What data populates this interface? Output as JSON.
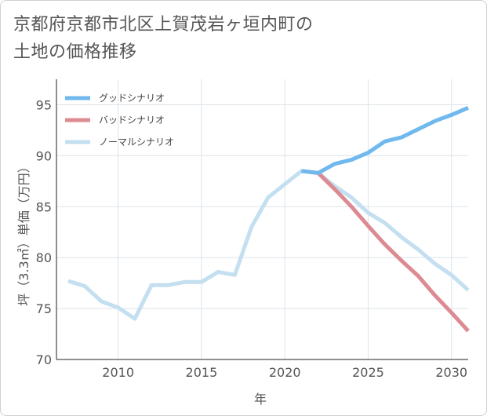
{
  "title": {
    "line1": "京都府京都市北区上賀茂岩ヶ垣内町の",
    "line2": "土地の価格推移"
  },
  "chart_data": {
    "type": "line",
    "xlabel": "年",
    "ylabel": "坪（3.3㎡）単価（万円）",
    "xlim": [
      2006.3,
      2031
    ],
    "ylim": [
      70,
      97.5
    ],
    "x_ticks": [
      2010,
      2015,
      2020,
      2025,
      2030
    ],
    "y_ticks": [
      70,
      75,
      80,
      85,
      90,
      95
    ],
    "legend_position": "top-left",
    "grid": true,
    "series": [
      {
        "name": "グッドシナリオ",
        "color": "#6fb9ee",
        "x": [
          2021,
          2022,
          2023,
          2024,
          2025,
          2026,
          2027,
          2028,
          2029,
          2030,
          2031
        ],
        "values": [
          88.5,
          88.3,
          89.2,
          89.6,
          90.3,
          91.4,
          91.8,
          92.6,
          93.4,
          94.0,
          94.7
        ]
      },
      {
        "name": "バッドシナリオ",
        "color": "#dd8b92",
        "x": [
          2021,
          2022,
          2023,
          2024,
          2025,
          2026,
          2027,
          2028,
          2029,
          2030,
          2031
        ],
        "values": [
          88.5,
          88.3,
          86.7,
          85.0,
          83.1,
          81.3,
          79.7,
          78.2,
          76.3,
          74.6,
          72.8
        ]
      },
      {
        "name": "ノーマルシナリオ",
        "color": "#c3dff0",
        "x": [
          2007,
          2008,
          2009,
          2010,
          2011,
          2012,
          2013,
          2014,
          2015,
          2016,
          2017,
          2018,
          2019,
          2020,
          2021,
          2022,
          2023,
          2024,
          2025,
          2026,
          2027,
          2028,
          2029,
          2030,
          2031
        ],
        "values": [
          77.7,
          77.2,
          75.7,
          75.1,
          74.0,
          77.3,
          77.3,
          77.6,
          77.6,
          78.6,
          78.3,
          83.0,
          85.9,
          87.2,
          88.5,
          88.3,
          87.0,
          85.9,
          84.4,
          83.4,
          82.0,
          80.8,
          79.4,
          78.3,
          76.8
        ]
      }
    ]
  }
}
